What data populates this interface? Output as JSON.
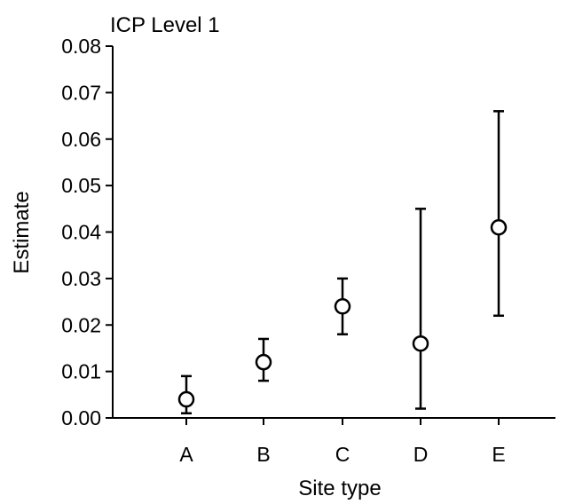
{
  "chart_data": {
    "type": "scatter",
    "title": "ICP Level 1",
    "xlabel": "Site type",
    "ylabel": "Estimate",
    "categories": [
      "A",
      "B",
      "C",
      "D",
      "E"
    ],
    "ylim": [
      0.0,
      0.08
    ],
    "yticks": [
      "0.00",
      "0.01",
      "0.02",
      "0.03",
      "0.04",
      "0.05",
      "0.06",
      "0.07",
      "0.08"
    ],
    "grid": false,
    "series": [
      {
        "estimate": [
          0.004,
          0.012,
          0.024,
          0.016,
          0.041
        ],
        "lower": [
          0.001,
          0.008,
          0.018,
          0.002,
          0.022
        ],
        "upper": [
          0.009,
          0.017,
          0.03,
          0.045,
          0.066
        ]
      }
    ],
    "marker": "open-circle",
    "error_bars": true,
    "color": "#000000"
  }
}
